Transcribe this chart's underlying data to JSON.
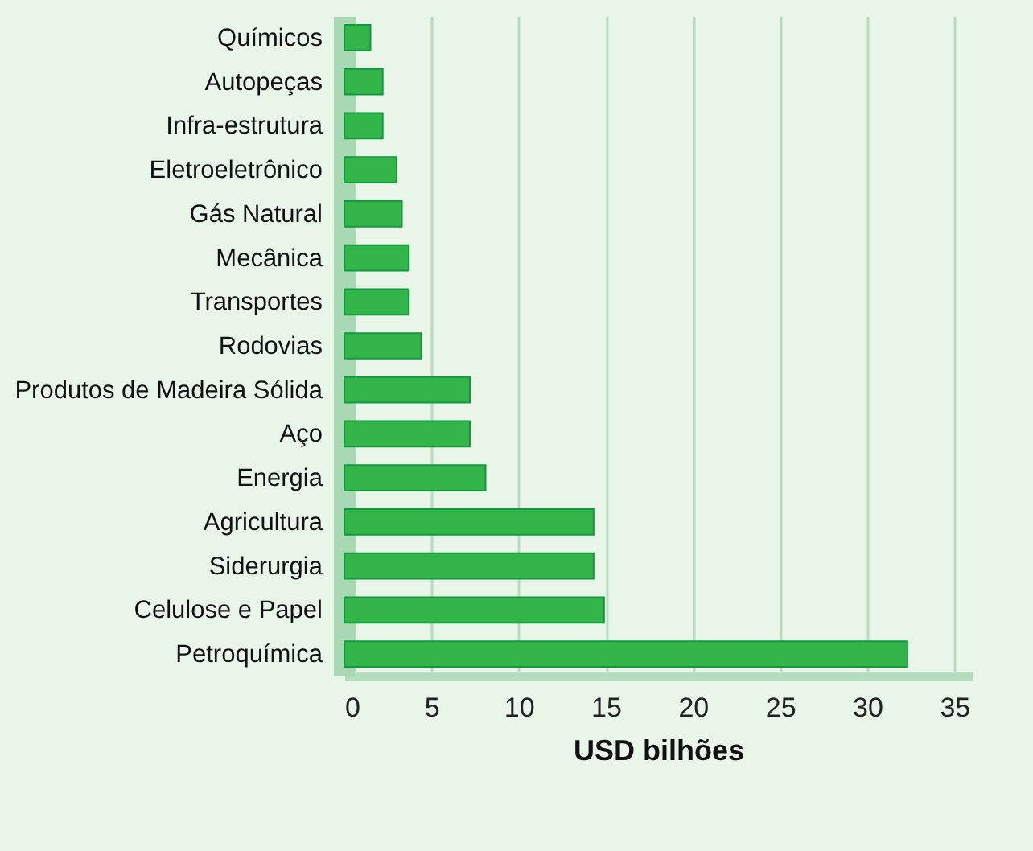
{
  "chart_data": {
    "type": "bar",
    "orientation": "horizontal",
    "xlabel": "USD bilhões",
    "categories": [
      "Químicos",
      "Autopeças",
      "Infra-estrutura",
      "Eletroeletrônico",
      "Gás Natural",
      "Mecânica",
      "Transportes",
      "Rodovias",
      "Produtos de Madeira Sólida",
      "Aço",
      "Energia",
      "Agricultura",
      "Siderurgia",
      "Celulose e Papel",
      "Petroquímica"
    ],
    "values": [
      1.5,
      2.2,
      2.2,
      3.0,
      3.3,
      3.7,
      3.7,
      4.4,
      7.2,
      7.2,
      8.1,
      14.3,
      14.3,
      14.9,
      32.3
    ],
    "color": "#33b54a",
    "xlim": [
      0,
      36
    ],
    "xticks": [
      0,
      5,
      10,
      15,
      20,
      25,
      30,
      35
    ],
    "grid": "x"
  }
}
